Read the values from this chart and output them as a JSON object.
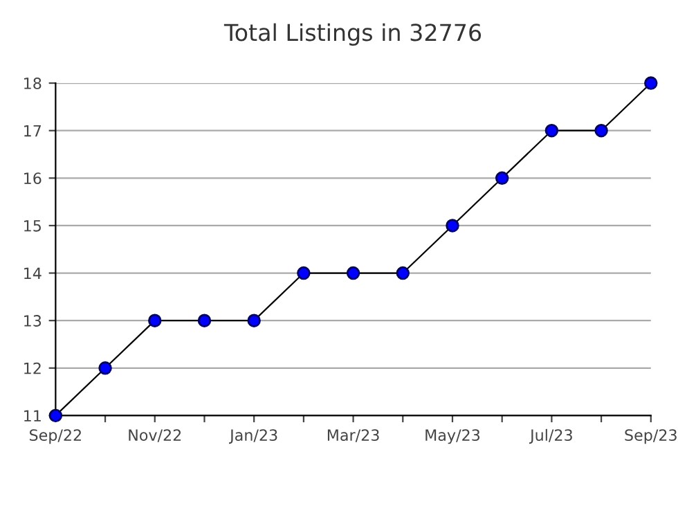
{
  "chart_data": {
    "type": "line",
    "title": "Total Listings in 32776",
    "categories": [
      "Sep/22",
      null,
      "Nov/22",
      null,
      "Jan/23",
      null,
      "Mar/23",
      null,
      "May/23",
      null,
      "Jul/23",
      null,
      "Sep/23"
    ],
    "series": [
      {
        "color": "#0000ff",
        "values": [
          11,
          12,
          13,
          13,
          13,
          14,
          14,
          14,
          15,
          16,
          17,
          17,
          18
        ]
      }
    ],
    "ylim": [
      11,
      18
    ],
    "yticks": [
      11,
      12,
      13,
      14,
      15,
      16,
      17,
      18
    ],
    "grid": "y",
    "marker": "circle",
    "line_style": "solid"
  }
}
